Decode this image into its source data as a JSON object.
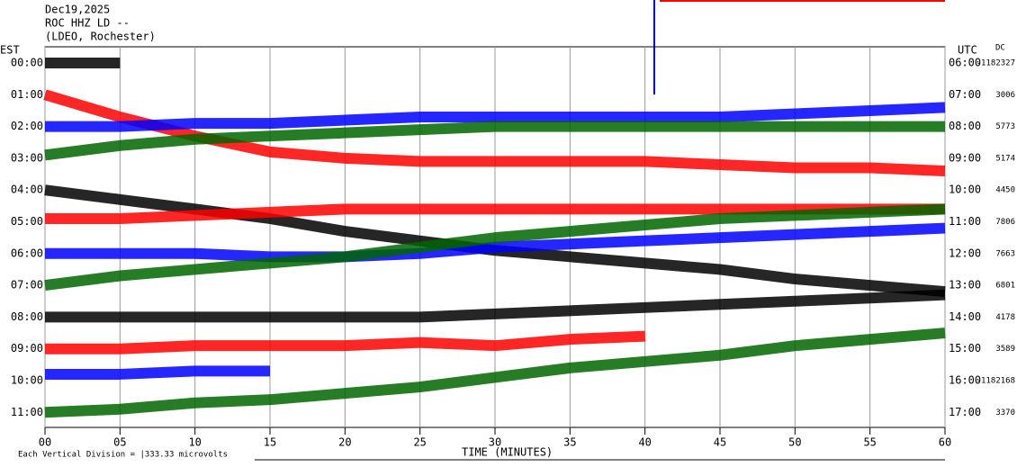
{
  "chart_data": {
    "type": "line",
    "title": "Dec19,2025",
    "subtitle": "ROC HHZ LD --",
    "station": "(LDEO, Rochester)",
    "left_axis_title": "EST",
    "right_axis_title": "UTC",
    "dc_title": "DC",
    "x_label": "TIME (MINUTES)",
    "scale_note": "Each Vertical Division = |333.33 microvolts",
    "xlim": [
      0,
      60
    ],
    "xticks": [
      {
        "value": 0,
        "label": "00"
      },
      {
        "value": 5,
        "label": "05"
      },
      10,
      15,
      20,
      25,
      30,
      35,
      40,
      45,
      50,
      55,
      60
    ],
    "grid": true,
    "x": [
      0,
      5,
      10,
      15,
      20,
      25,
      30,
      35,
      40,
      45,
      50,
      55,
      60
    ],
    "rows_est": [
      "00:00",
      "01:00",
      "02:00",
      "03:00",
      "04:00",
      "05:00",
      "06:00",
      "07:00",
      "08:00",
      "09:00",
      "10:00",
      "11:00"
    ],
    "rows_utc": [
      "06:00",
      "07:00",
      "08:00",
      "09:00",
      "10:00",
      "11:00",
      "12:00",
      "13:00",
      "14:00",
      "15:00",
      "16:00",
      "17:00"
    ],
    "dc": [
      -1182327,
      3006,
      5773,
      5174,
      4450,
      7806,
      7663,
      6801,
      4178,
      3589,
      -1182168,
      3370
    ],
    "series": [
      {
        "color": "#000000",
        "values": [
          0,
          0,
          null,
          null,
          null,
          null,
          null,
          null,
          null,
          null,
          null,
          null,
          null
        ]
      },
      {
        "color": "#ff0000",
        "values": [
          0,
          -0.7,
          -1.3,
          -1.8,
          -2.0,
          -2.1,
          -2.1,
          -2.1,
          -2.1,
          -2.2,
          -2.3,
          -2.3,
          -2.4
        ]
      },
      {
        "color": "#0000ff",
        "values": [
          0,
          0,
          0.1,
          0.1,
          0.2,
          0.3,
          0.3,
          0.3,
          0.3,
          0.3,
          0.4,
          0.5,
          0.6
        ]
      },
      {
        "color": "#006600",
        "values": [
          0.1,
          0.4,
          0.6,
          0.7,
          0.8,
          0.9,
          1,
          1,
          1,
          1,
          1,
          1,
          1
        ]
      },
      {
        "color": "#000000",
        "values": [
          0,
          -0.3,
          -0.6,
          -0.9,
          -1.3,
          -1.6,
          -1.9,
          -2.1,
          -2.3,
          -2.5,
          -2.8,
          -3.0,
          -3.2
        ]
      },
      {
        "color": "#ff0000",
        "values": [
          0.1,
          0.1,
          0.2,
          0.3,
          0.4,
          0.4,
          0.4,
          0.4,
          0.4,
          0.4,
          0.4,
          0.4,
          0.4
        ]
      },
      {
        "color": "#0000ff",
        "values": [
          0,
          0,
          0,
          -0.1,
          -0.1,
          0,
          0.2,
          0.3,
          0.4,
          0.5,
          0.6,
          0.7,
          0.8
        ]
      },
      {
        "color": "#006600",
        "values": [
          0,
          0.3,
          0.5,
          0.7,
          0.9,
          1.2,
          1.5,
          1.7,
          1.9,
          2.1,
          2.2,
          2.3,
          2.4
        ]
      },
      {
        "color": "#000000",
        "values": [
          0,
          0,
          0,
          0,
          0,
          0,
          0.1,
          0.2,
          0.3,
          0.4,
          0.5,
          0.6,
          0.7
        ]
      },
      {
        "color": "#ff0000",
        "values": [
          0,
          0,
          0.1,
          0.1,
          0.1,
          0.2,
          0.1,
          0.3,
          0.4,
          null,
          null,
          null,
          null
        ]
      },
      {
        "color": "#0000ff",
        "values": [
          0.2,
          0.2,
          0.3,
          0.3,
          null,
          null,
          null,
          null,
          null,
          null,
          null,
          null,
          null
        ]
      },
      {
        "color": "#006600",
        "values": [
          0,
          0.1,
          0.3,
          0.4,
          0.6,
          0.8,
          1.1,
          1.4,
          1.6,
          1.8,
          2.1,
          2.3,
          2.5
        ]
      }
    ]
  }
}
